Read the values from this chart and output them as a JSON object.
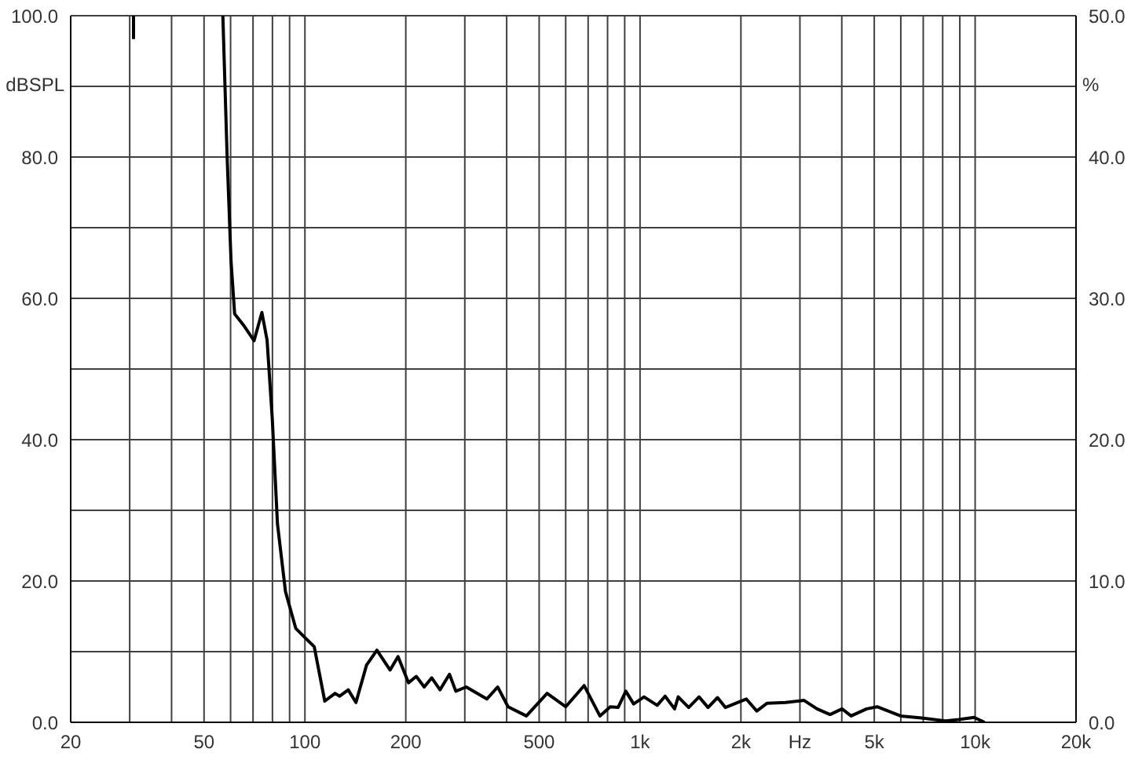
{
  "chart_data": {
    "type": "line",
    "ylabel": "dBSPL",
    "y2label": "%",
    "log": "x",
    "grid": true,
    "marker": "none",
    "line_style": "solid",
    "xlim": [
      20,
      20000
    ],
    "xticks": [
      20,
      {
        "value": 30,
        "label": null
      },
      {
        "value": 40,
        "label": null
      },
      50,
      {
        "value": 60,
        "label": null
      },
      {
        "value": 70,
        "label": null
      },
      {
        "value": 80,
        "label": null
      },
      {
        "value": 90,
        "label": null
      },
      100,
      200,
      {
        "value": 300,
        "label": null
      },
      {
        "value": 400,
        "label": null
      },
      500,
      {
        "value": 600,
        "label": null
      },
      {
        "value": 700,
        "label": null
      },
      {
        "value": 800,
        "label": null
      },
      {
        "value": 900,
        "label": null
      },
      {
        "value": 1000,
        "label": "1k"
      },
      {
        "value": 2000,
        "label": "2k"
      },
      {
        "value": 3000,
        "label": "Hz"
      },
      {
        "value": 4000,
        "label": null
      },
      {
        "value": 5000,
        "label": "5k"
      },
      {
        "value": 6000,
        "label": null
      },
      {
        "value": 7000,
        "label": null
      },
      {
        "value": 8000,
        "label": null
      },
      {
        "value": 9000,
        "label": null
      },
      {
        "value": 10000,
        "label": "10k"
      },
      {
        "value": 20000,
        "label": "20k"
      }
    ],
    "ylim": [
      0,
      100
    ],
    "yticks": [
      {
        "value": 0,
        "label": "0.0"
      },
      {
        "value": 10,
        "label": null
      },
      {
        "value": 20,
        "label": "20.0"
      },
      {
        "value": 30,
        "label": null
      },
      {
        "value": 40,
        "label": "40.0"
      },
      {
        "value": 50,
        "label": null
      },
      {
        "value": 60,
        "label": "60.0"
      },
      {
        "value": 70,
        "label": null
      },
      {
        "value": 80,
        "label": "80.0"
      },
      {
        "value": 90,
        "label": null
      },
      {
        "value": 100,
        "label": "100.0"
      }
    ],
    "y2lim": [
      0,
      50
    ],
    "y2ticks": [
      {
        "value": 0,
        "label": "0.0"
      },
      {
        "value": 10,
        "label": "10.0"
      },
      {
        "value": 20,
        "label": "20.0"
      },
      {
        "value": 30,
        "label": "30.0"
      },
      {
        "value": 40,
        "label": "40.0"
      },
      {
        "value": 50,
        "label": "50.0"
      }
    ],
    "series": [
      {
        "color": "#000000",
        "x": [
          30.8,
          30.8,
          40,
          56.9,
          58.6,
          60.2,
          61.7,
          65.6,
          70.5,
          74.4,
          77.1,
          79.9,
          82.8,
          87.5,
          93.9,
          101,
          106.6,
          114.6,
          123,
          127,
          134.7,
          142,
          152.7,
          164,
          179.5,
          189.6,
          203.7,
          214.9,
          227,
          239,
          253,
          270,
          282,
          303,
          349,
          376,
          404,
          458,
          528,
          600,
          681,
          759,
          815,
          860,
          907,
          957,
          1028,
          1125,
          1188,
          1268,
          1300,
          1397,
          1500,
          1596,
          1703,
          1797,
          2075,
          2230,
          2395,
          2718,
          3086,
          3375,
          3690,
          4008,
          4264,
          4745,
          5100,
          5995,
          6930,
          8150,
          8920,
          9930,
          10670
        ],
        "values": [
          100,
          96.7,
          null,
          100,
          80,
          65.2,
          57.8,
          56.2,
          54,
          58,
          54.1,
          43,
          28.1,
          18.5,
          13.3,
          11.8,
          10.7,
          3,
          4.1,
          3.7,
          4.6,
          2.8,
          8.1,
          10.2,
          7.4,
          9.3,
          5.6,
          6.5,
          5,
          6.3,
          4.6,
          6.8,
          4.4,
          5,
          3.3,
          5,
          2.2,
          0.9,
          4.1,
          2.2,
          5.2,
          0.9,
          2.2,
          2.1,
          4.4,
          2.6,
          3.6,
          2.4,
          3.7,
          1.9,
          3.6,
          2.1,
          3.6,
          2.1,
          3.5,
          2.1,
          3.3,
          1.6,
          2.7,
          2.8,
          3.1,
          1.9,
          1.1,
          1.9,
          0.9,
          1.9,
          2.2,
          0.9,
          0.6,
          0.2,
          0.4,
          0.7,
          0
        ]
      }
    ]
  }
}
